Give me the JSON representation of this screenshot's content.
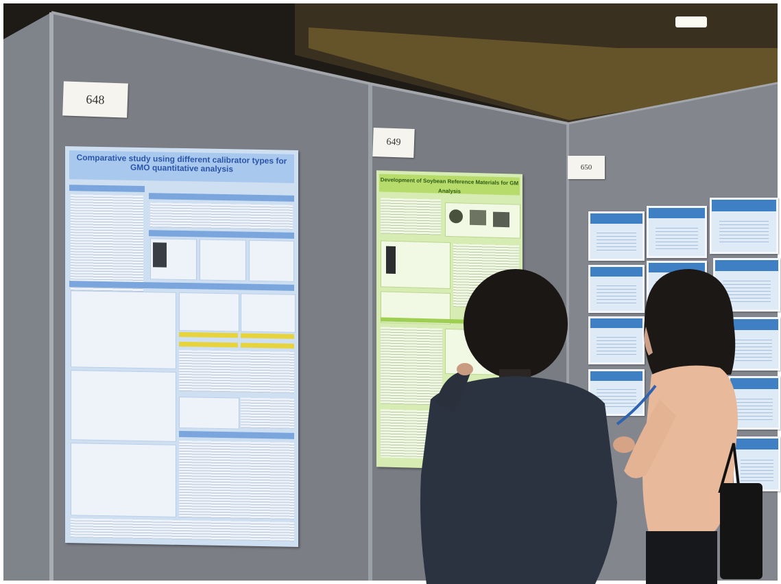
{
  "scene": {
    "board_numbers": [
      "648",
      "649",
      "650"
    ],
    "poster_left": {
      "title": "Comparative study using different calibrator types for GMO quantitative analysis"
    },
    "poster_middle": {
      "title": "Development of Soybean Reference Materials for GM Analysis"
    },
    "colors": {
      "panel": "#7d7f87",
      "ceiling": "#6d5a2c",
      "poster_left": "#cfdff2",
      "poster_middle": "#d6ecb2",
      "jacket": "#2c3340",
      "sweater": "#e8b99a"
    },
    "icons": [
      "ceiling-light-icon",
      "handbag-icon",
      "lanyard-icon"
    ]
  }
}
